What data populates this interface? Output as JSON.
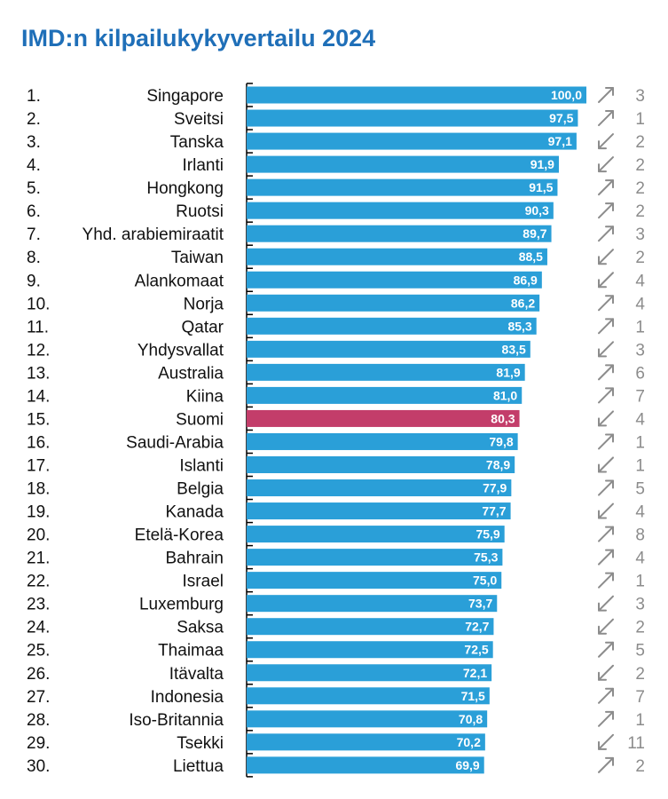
{
  "title": "IMD:n kilpailukykyvertailu 2024",
  "colors": {
    "title": "#1f6fb8",
    "bar": "#2a9fd8",
    "highlight": "#c33d6a",
    "arrow": "#8c8c8c",
    "axis": "#000000"
  },
  "chart_data": {
    "type": "bar",
    "orientation": "horizontal",
    "title": "IMD:n kilpailukykyvertailu 2024",
    "xlim": [
      0,
      100
    ],
    "highlight": "Suomi",
    "data_labels_decimal_comma": true,
    "rows": [
      {
        "rank": "1.",
        "country": "Singapore",
        "value": 100.0,
        "label": "100,0",
        "trend": "up",
        "change": "3"
      },
      {
        "rank": "2.",
        "country": "Sveitsi",
        "value": 97.5,
        "label": "97,5",
        "trend": "up",
        "change": "1"
      },
      {
        "rank": "3.",
        "country": "Tanska",
        "value": 97.1,
        "label": "97,1",
        "trend": "down",
        "change": "2"
      },
      {
        "rank": "4.",
        "country": "Irlanti",
        "value": 91.9,
        "label": "91,9",
        "trend": "down",
        "change": "2"
      },
      {
        "rank": "5.",
        "country": "Hongkong",
        "value": 91.5,
        "label": "91,5",
        "trend": "up",
        "change": "2"
      },
      {
        "rank": "6.",
        "country": "Ruotsi",
        "value": 90.3,
        "label": "90,3",
        "trend": "up",
        "change": "2"
      },
      {
        "rank": "7.",
        "country": "Yhd. arabiemiraatit",
        "value": 89.7,
        "label": "89,7",
        "trend": "up",
        "change": "3"
      },
      {
        "rank": "8.",
        "country": "Taiwan",
        "value": 88.5,
        "label": "88,5",
        "trend": "down",
        "change": "2"
      },
      {
        "rank": "9.",
        "country": "Alankomaat",
        "value": 86.9,
        "label": "86,9",
        "trend": "down",
        "change": "4"
      },
      {
        "rank": "10.",
        "country": "Norja",
        "value": 86.2,
        "label": "86,2",
        "trend": "up",
        "change": "4"
      },
      {
        "rank": "11.",
        "country": "Qatar",
        "value": 85.3,
        "label": "85,3",
        "trend": "up",
        "change": "1"
      },
      {
        "rank": "12.",
        "country": "Yhdysvallat",
        "value": 83.5,
        "label": "83,5",
        "trend": "down",
        "change": "3"
      },
      {
        "rank": "13.",
        "country": "Australia",
        "value": 81.9,
        "label": "81,9",
        "trend": "up",
        "change": "6"
      },
      {
        "rank": "14.",
        "country": "Kiina",
        "value": 81.0,
        "label": "81,0",
        "trend": "up",
        "change": "7"
      },
      {
        "rank": "15.",
        "country": "Suomi",
        "value": 80.3,
        "label": "80,3",
        "trend": "down",
        "change": "4"
      },
      {
        "rank": "16.",
        "country": "Saudi-Arabia",
        "value": 79.8,
        "label": "79,8",
        "trend": "up",
        "change": "1"
      },
      {
        "rank": "17.",
        "country": "Islanti",
        "value": 78.9,
        "label": "78,9",
        "trend": "down",
        "change": "1"
      },
      {
        "rank": "18.",
        "country": "Belgia",
        "value": 77.9,
        "label": "77,9",
        "trend": "up",
        "change": "5"
      },
      {
        "rank": "19.",
        "country": "Kanada",
        "value": 77.7,
        "label": "77,7",
        "trend": "down",
        "change": "4"
      },
      {
        "rank": "20.",
        "country": "Etelä-Korea",
        "value": 75.9,
        "label": "75,9",
        "trend": "up",
        "change": "8"
      },
      {
        "rank": "21.",
        "country": "Bahrain",
        "value": 75.3,
        "label": "75,3",
        "trend": "up",
        "change": "4"
      },
      {
        "rank": "22.",
        "country": "Israel",
        "value": 75.0,
        "label": "75,0",
        "trend": "up",
        "change": "1"
      },
      {
        "rank": "23.",
        "country": "Luxemburg",
        "value": 73.7,
        "label": "73,7",
        "trend": "down",
        "change": "3"
      },
      {
        "rank": "24.",
        "country": "Saksa",
        "value": 72.7,
        "label": "72,7",
        "trend": "down",
        "change": "2"
      },
      {
        "rank": "25.",
        "country": "Thaimaa",
        "value": 72.5,
        "label": "72,5",
        "trend": "up",
        "change": "5"
      },
      {
        "rank": "26.",
        "country": "Itävalta",
        "value": 72.1,
        "label": "72,1",
        "trend": "down",
        "change": "2"
      },
      {
        "rank": "27.",
        "country": "Indonesia",
        "value": 71.5,
        "label": "71,5",
        "trend": "up",
        "change": "7"
      },
      {
        "rank": "28.",
        "country": "Iso-Britannia",
        "value": 70.8,
        "label": "70,8",
        "trend": "up",
        "change": "1"
      },
      {
        "rank": "29.",
        "country": "Tsekki",
        "value": 70.2,
        "label": "70,2",
        "trend": "down",
        "change": "11"
      },
      {
        "rank": "30.",
        "country": "Liettua",
        "value": 69.9,
        "label": "69,9",
        "trend": "up",
        "change": "2"
      }
    ]
  }
}
